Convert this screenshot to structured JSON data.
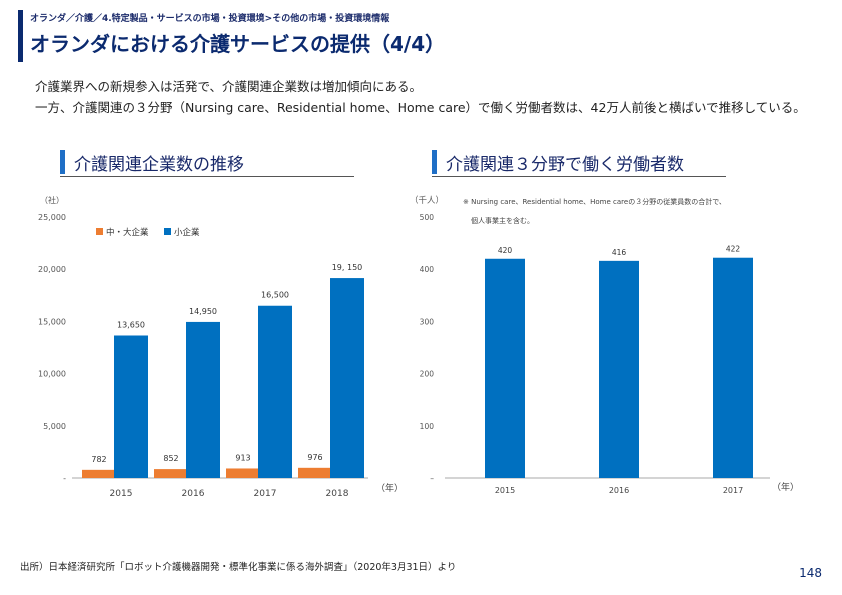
{
  "header": {
    "breadcrumb": "オランダ／介護／4.特定製品・サービスの市場・投資環境>その他の市場・投資環境情報",
    "title": "オランダにおける介護サービスの提供（4/4）"
  },
  "body": {
    "line1": "介護業界への新規参入は活発で、介護関連企業数は増加傾向にある。",
    "line2": "一方、介護関連の３分野（Nursing care、Residential home、Home care）で働く労働者数は、42万人前後と横ばいで推移している。"
  },
  "sections": {
    "left_title": "介護関連企業数の推移",
    "right_title": "介護関連３分野で働く労働者数"
  },
  "colors": {
    "blue": "#0070c0",
    "orange": "#ed7d31",
    "navy": "#0b2a6f"
  },
  "chart_data": [
    {
      "type": "bar",
      "categories": [
        "2015",
        "2016",
        "2017",
        "2018"
      ],
      "series": [
        {
          "name": "中・大企業",
          "values": [
            782,
            852,
            913,
            976
          ],
          "labels": [
            "782",
            "852",
            "913",
            "976"
          ],
          "color": "#ed7d31"
        },
        {
          "name": "小企業",
          "values": [
            13650,
            14950,
            16500,
            19150
          ],
          "labels": [
            "13,650",
            "14,950",
            "16,500",
            "19, 150"
          ],
          "color": "#0070c0"
        }
      ],
      "yticks": [
        "-",
        "5,000",
        "10,000",
        "15,000",
        "20,000",
        "25,000"
      ],
      "ylim": [
        0,
        25000
      ],
      "yunit": "（社）",
      "xunit": "（年）",
      "legend_position": "top-left"
    },
    {
      "type": "bar",
      "categories": [
        "2015",
        "2016",
        "2017"
      ],
      "series": [
        {
          "values": [
            420,
            416,
            422
          ],
          "labels": [
            "420",
            "416",
            "422"
          ],
          "color": "#0070c0"
        }
      ],
      "yticks": [
        "–",
        "100",
        "200",
        "300",
        "400",
        "500"
      ],
      "ylim": [
        0,
        500
      ],
      "yunit": "（千人）",
      "xunit": "（年）",
      "note": [
        "※ Nursing care、Residential home、Home careの３分野の従業員数の合計で、",
        "個人事業主を含む。"
      ]
    }
  ],
  "footer": {
    "source": "出所）日本経済研究所「ロボット介護機器開発・標準化事業に係る海外調査」（2020年3月31日）より",
    "page": "148"
  }
}
